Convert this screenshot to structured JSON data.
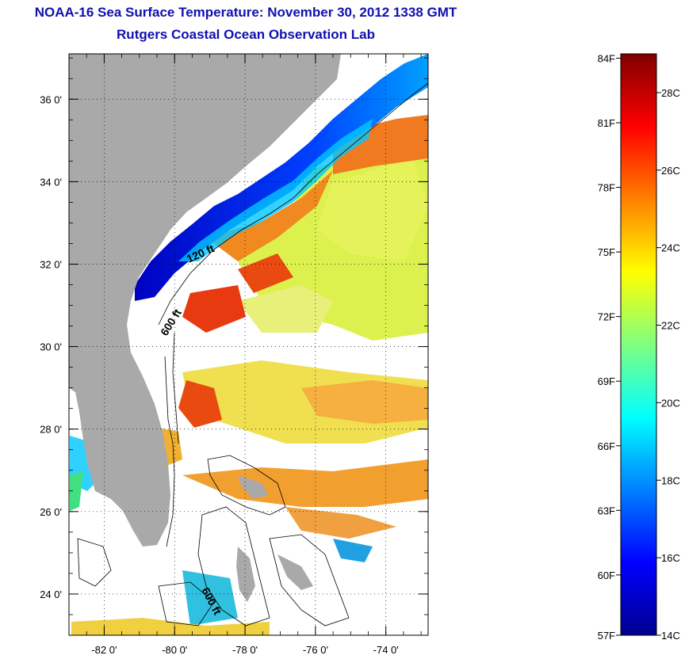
{
  "header": {
    "title": "NOAA-16 Sea Surface Temperature:  November 30, 2012 1338 GMT",
    "subtitle": "Rutgers Coastal Ocean Observation Lab"
  },
  "map": {
    "lat_ticks": [
      "36 0'",
      "34 0'",
      "32 0'",
      "30 0'",
      "28 0'",
      "26 0'",
      "24 0'"
    ],
    "lon_ticks": [
      "-82 0'",
      "-80 0'",
      "-78 0'",
      "-76 0'",
      "-74 0'"
    ],
    "lat_range": [
      23.0,
      37.1
    ],
    "lon_range": [
      -83.0,
      -72.8
    ],
    "land_color": "#a9a9a9",
    "contour_labels": [
      "120 ft",
      "600 ft",
      "600 ft"
    ]
  },
  "colorbar": {
    "fahrenheit_labels": [
      "84F",
      "81F",
      "78F",
      "75F",
      "72F",
      "69F",
      "66F",
      "63F",
      "60F",
      "57F"
    ],
    "celsius_labels": [
      "28C",
      "26C",
      "24C",
      "22C",
      "20C",
      "18C",
      "16C",
      "14C"
    ],
    "min_c": 14,
    "max_c": 29,
    "colors": [
      "#00008f",
      "#0000ff",
      "#0080ff",
      "#00ffff",
      "#80ff80",
      "#ffff00",
      "#ff8000",
      "#ff0000",
      "#800000"
    ]
  }
}
